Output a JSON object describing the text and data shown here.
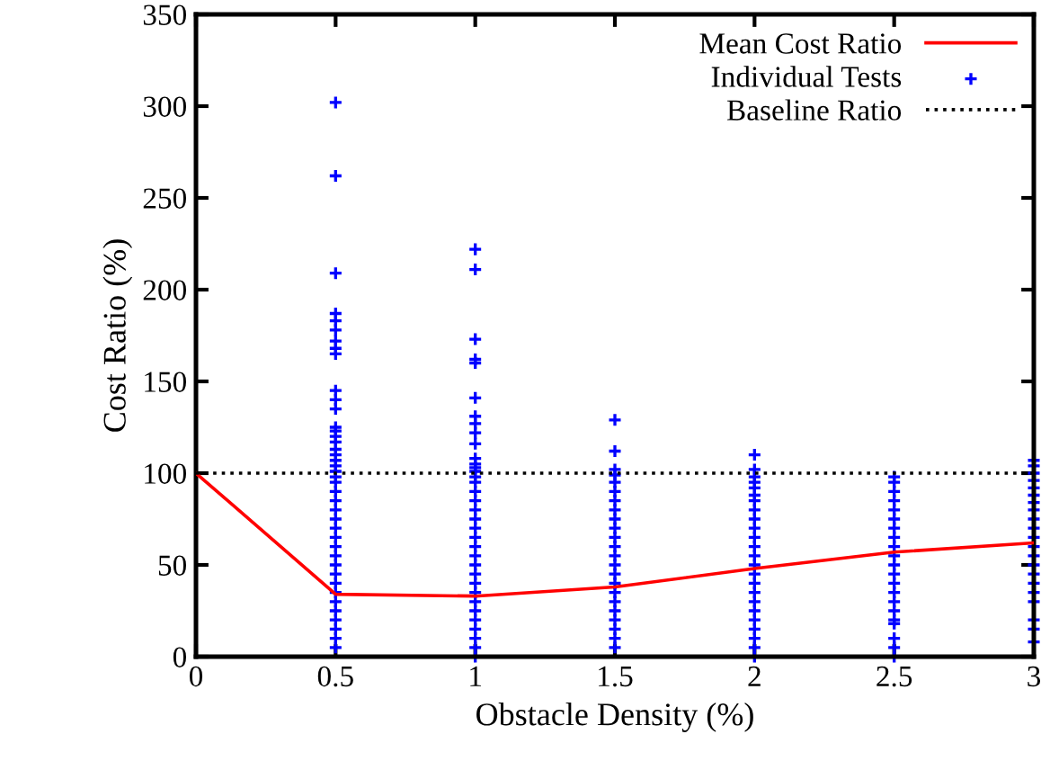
{
  "chart_data": {
    "type": "scatter",
    "xlabel": "Obstacle Density (%)",
    "ylabel": "Cost Ratio (%)",
    "xlim": [
      0,
      3
    ],
    "ylim": [
      0,
      350
    ],
    "xticks": [
      0,
      0.5,
      1,
      1.5,
      2,
      2.5,
      3
    ],
    "yticks": [
      0,
      50,
      100,
      150,
      200,
      250,
      300,
      350
    ],
    "grid": false,
    "legend": "top right",
    "series": [
      {
        "name": "Mean Cost Ratio",
        "type": "line",
        "color": "#ff0000",
        "marker": "none",
        "line_style": "solid",
        "x": [
          0,
          0.5,
          1,
          1.5,
          2,
          2.5,
          3
        ],
        "values": [
          100,
          34,
          33,
          38,
          48,
          57,
          62
        ]
      },
      {
        "name": "Individual Tests",
        "color": "#0000ff",
        "marker": "cross",
        "x": [
          0.5,
          0.5,
          0.5,
          0.5,
          0.5,
          0.5,
          0.5,
          0.5,
          0.5,
          0.5,
          0.5,
          0.5,
          0.5,
          0.5,
          0.5,
          0.5,
          0.5,
          0.5,
          0.5,
          0.5,
          0.5,
          0.5,
          0.5,
          0.5,
          0.5,
          0.5,
          0.5,
          0.5,
          0.5,
          0.5,
          0.5,
          0.5,
          0.5,
          0.5,
          0.5,
          0.5,
          0.5,
          0.5,
          0.5,
          0.5,
          0.5,
          1,
          1,
          1,
          1,
          1,
          1,
          1,
          1,
          1,
          1,
          1,
          1,
          1,
          1,
          1,
          1,
          1,
          1,
          1,
          1,
          1,
          1,
          1,
          1,
          1,
          1,
          1,
          1,
          1,
          1,
          1,
          1,
          1,
          1,
          1,
          1.5,
          1.5,
          1.5,
          1.5,
          1.5,
          1.5,
          1.5,
          1.5,
          1.5,
          1.5,
          1.5,
          1.5,
          1.5,
          1.5,
          1.5,
          1.5,
          1.5,
          1.5,
          1.5,
          1.5,
          1.5,
          1.5,
          1.5,
          2,
          2,
          2,
          2,
          2,
          2,
          2,
          2,
          2,
          2,
          2,
          2,
          2,
          2,
          2,
          2,
          2,
          2,
          2,
          2,
          2,
          2,
          2,
          2,
          2.5,
          2.5,
          2.5,
          2.5,
          2.5,
          2.5,
          2.5,
          2.5,
          2.5,
          2.5,
          2.5,
          2.5,
          2.5,
          2.5,
          2.5,
          2.5,
          2.5,
          2.5,
          2.5,
          2.5,
          2.5,
          3,
          3,
          3,
          3,
          3,
          3,
          3,
          3,
          3,
          3,
          3,
          3,
          3,
          3,
          3,
          3,
          3,
          3,
          3,
          3,
          3
        ],
        "values": [
          302,
          262,
          209,
          187,
          183,
          178,
          172,
          168,
          165,
          145,
          140,
          135,
          125,
          123,
          120,
          117,
          113,
          110,
          107,
          104,
          101,
          98,
          95,
          90,
          85,
          80,
          75,
          70,
          65,
          60,
          55,
          50,
          45,
          40,
          35,
          30,
          25,
          20,
          15,
          10,
          5,
          222,
          211,
          173,
          162,
          160,
          141,
          131,
          127,
          122,
          116,
          108,
          105,
          103,
          101,
          98,
          95,
          90,
          85,
          80,
          75,
          70,
          65,
          60,
          55,
          50,
          45,
          40,
          35,
          30,
          25,
          20,
          15,
          10,
          5,
          0,
          129,
          112,
          102,
          99,
          95,
          90,
          85,
          80,
          75,
          70,
          65,
          60,
          55,
          50,
          45,
          40,
          35,
          30,
          25,
          20,
          15,
          10,
          5,
          110,
          102,
          98,
          95,
          92,
          88,
          85,
          80,
          75,
          70,
          65,
          60,
          55,
          50,
          45,
          40,
          35,
          30,
          25,
          20,
          15,
          10,
          5,
          0,
          98,
          95,
          90,
          85,
          80,
          75,
          70,
          65,
          60,
          55,
          50,
          45,
          40,
          35,
          30,
          25,
          20,
          18,
          10,
          5,
          0,
          107,
          104,
          100,
          96,
          92,
          88,
          84,
          80,
          75,
          70,
          65,
          60,
          55,
          50,
          45,
          40,
          35,
          30,
          20,
          15,
          8
        ]
      },
      {
        "name": "Baseline Ratio",
        "type": "line",
        "color": "#000000",
        "marker": "none",
        "line_style": "dotted",
        "x": [
          0,
          3
        ],
        "values": [
          100,
          100
        ]
      }
    ]
  }
}
